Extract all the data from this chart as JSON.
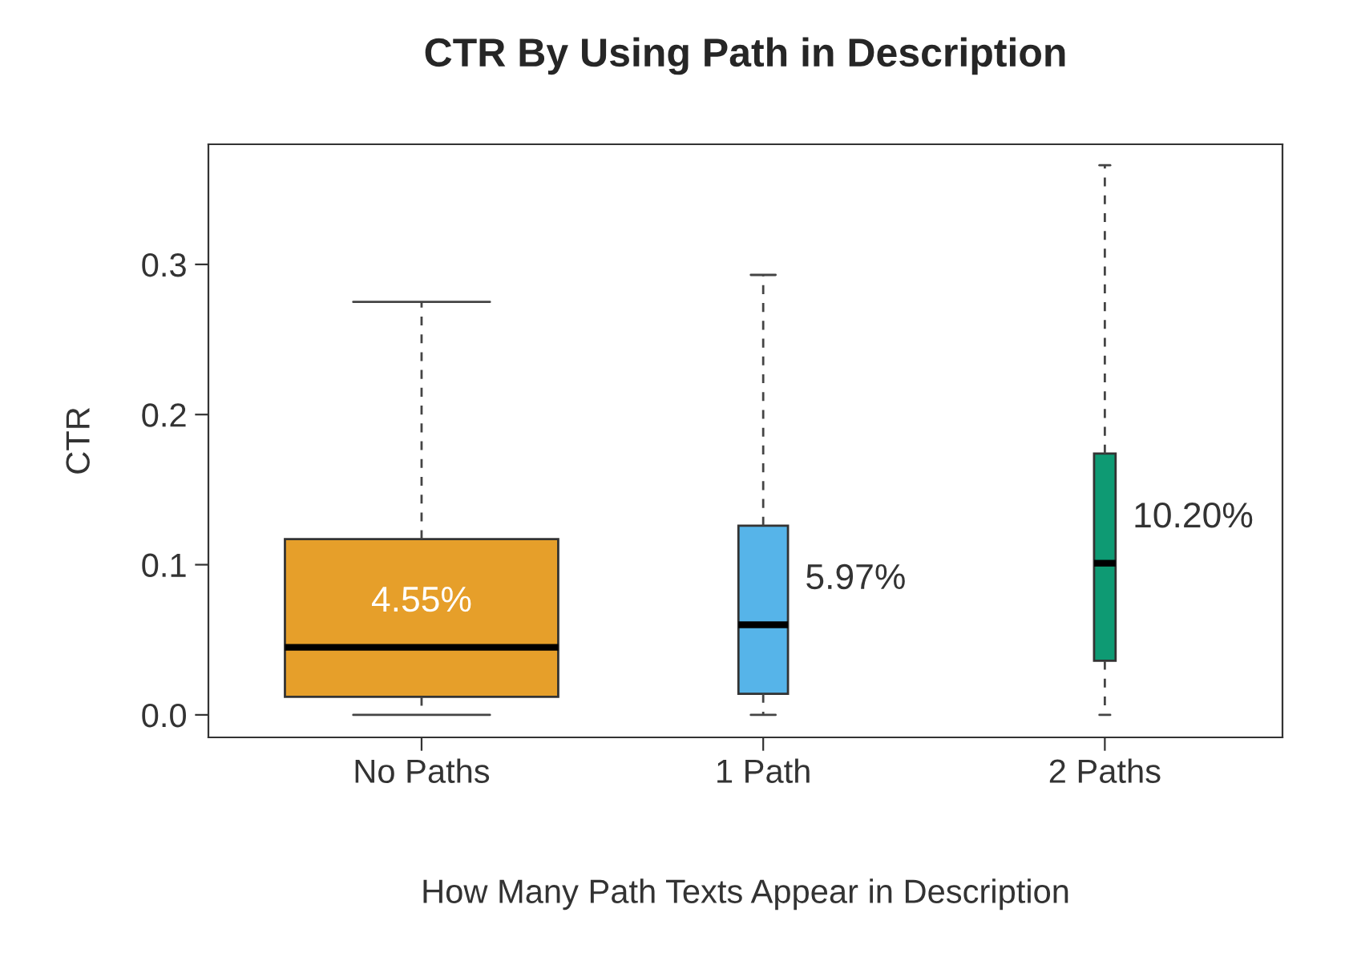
{
  "chart_data": {
    "type": "box",
    "title": "CTR By Using Path in Description",
    "xlabel": "How Many Path Texts Appear in Description",
    "ylabel": "CTR",
    "categories": [
      "No Paths",
      "1 Path",
      "2 Paths"
    ],
    "colors": [
      "#e69f2a",
      "#56b4e9",
      "#0e9a73"
    ],
    "boxes": [
      {
        "low": 0,
        "q1": 0.012,
        "median": 0.045,
        "q3": 0.117,
        "high": 0.275
      },
      {
        "low": 0,
        "q1": 0.014,
        "median": 0.06,
        "q3": 0.126,
        "high": 0.293
      },
      {
        "low": 0,
        "q1": 0.036,
        "median": 0.101,
        "q3": 0.174,
        "high": 0.366
      }
    ],
    "annotations": [
      "4.55%",
      "5.97%",
      "10.20%"
    ],
    "ylim": [
      -0.015,
      0.38
    ],
    "yticks": [
      {
        "value": 0,
        "label": "0.0"
      },
      0.1,
      0.2,
      0.3
    ],
    "grid": false
  }
}
